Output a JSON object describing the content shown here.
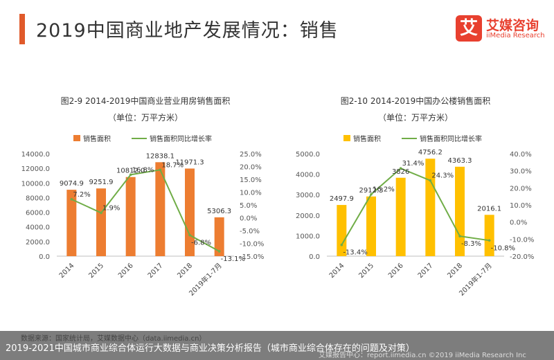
{
  "page": {
    "title": "2019中国商业地产发展情况：销售",
    "logo_char": "艾",
    "logo_cn": "艾媒咨询",
    "logo_en": "iiMedia Research",
    "source": "数据来源：国家统计局，艾媒数据中心（data.iimedia.cn）",
    "caption": "2019-2021中国城市商业综合体运行大数据与商业决策分析报告（城市商业综合体存在的问题及对策）",
    "report": "艾媒报告中心：report.iimedia.cn ©2019 iiMedia Research Inc"
  },
  "chart_data": [
    {
      "type": "bar+line",
      "title": "图2-9 2014-2019中国商业营业用房销售面积",
      "subtitle": "（单位：万平方米）",
      "categories": [
        "2014",
        "2015",
        "2016",
        "2017",
        "2018",
        "2019年1-7月"
      ],
      "series": [
        {
          "name": "销售面积",
          "type": "bar",
          "axis": "left",
          "values": [
            9074.9,
            9251.9,
            10812.0,
            12838.1,
            11971.3,
            5306.3
          ],
          "labels": [
            "9074.9",
            "9251.9",
            "10812.0",
            "12838.1",
            "11971.3",
            "5306.3"
          ]
        },
        {
          "name": "销售面积同比增长率",
          "type": "line",
          "axis": "right",
          "values": [
            7.2,
            1.9,
            16.8,
            18.7,
            -6.8,
            -13.1
          ],
          "labels": [
            "7.2%",
            "1.9%",
            "16.8%",
            "18.7%",
            "-6.8%",
            "-13.1%"
          ]
        }
      ],
      "left_ticks": [
        "0.0",
        "2000.0",
        "4000.0",
        "6000.0",
        "8000.0",
        "10000.0",
        "12000.0",
        "14000.0"
      ],
      "right_ticks": [
        "-15.0%",
        "-10.0%",
        "-5.0%",
        "0.0%",
        "5.0%",
        "10.0%",
        "15.0%",
        "20.0%",
        "25.0%"
      ],
      "ylim_left": [
        0,
        14000
      ],
      "ylim_right": [
        -15,
        25
      ],
      "bar_color": "#ed7d31",
      "line_color": "#70ad47",
      "legend": "top-center"
    },
    {
      "type": "bar+line",
      "title": "图2-10 2014-2019中国办公楼销售面积",
      "subtitle": "（单位：万平方米）",
      "categories": [
        "2014",
        "2015",
        "2016",
        "2017",
        "2018",
        "2019年1-7月"
      ],
      "series": [
        {
          "name": "销售面积",
          "type": "bar",
          "axis": "left",
          "values": [
            2497.9,
            2912.3,
            3826.0,
            4756.2,
            4363.3,
            2016.1
          ],
          "labels": [
            "2497.9",
            "2912.3",
            "3826",
            "4756.2",
            "4363.3",
            "2016.1"
          ]
        },
        {
          "name": "销售面积同比增长率",
          "type": "line",
          "axis": "right",
          "values": [
            -13.4,
            16.2,
            31.4,
            24.3,
            -8.3,
            -10.8
          ],
          "labels": [
            "-13.4%",
            "16.2%",
            "31.4%",
            "24.3%",
            "-8.3%",
            "-10.8%"
          ]
        }
      ],
      "left_ticks": [
        "0.0",
        "1000.0",
        "2000.0",
        "3000.0",
        "4000.0",
        "5000.0"
      ],
      "right_ticks": [
        "-20.0%",
        "-10.0%",
        "0.0%",
        "10.0%",
        "20.0%",
        "30.0%",
        "40.0%"
      ],
      "ylim_left": [
        0,
        5000
      ],
      "ylim_right": [
        -20,
        40
      ],
      "bar_color": "#ffc000",
      "line_color": "#70ad47",
      "legend": "top-center"
    }
  ]
}
